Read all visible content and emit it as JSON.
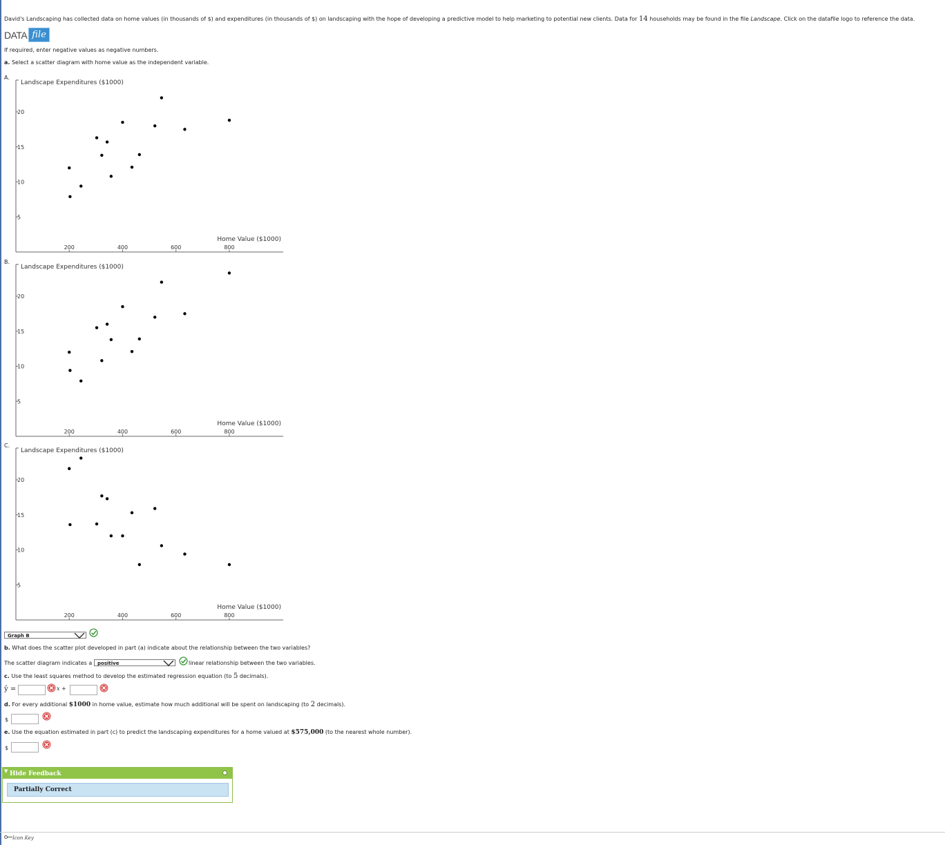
{
  "intro": {
    "pre": "David's Landscaping has collected data on home values (in thousands of $) and expenditures (in thousands of $) on landscaping with the hope of developing a predictive model to help marketing to potential new clients. Data for ",
    "count": "14",
    "mid": " households may be found in the file ",
    "file": "Landscape",
    "post": ". Click on the datafile logo to reference the data."
  },
  "data_logo": {
    "text": "DATA",
    "file": "file"
  },
  "note": "If required, enter negative values as negative numbers.",
  "part_a": {
    "letter": "a.",
    "text": " Select a scatter diagram with home value as the independent variable."
  },
  "options": [
    {
      "letter": "A."
    },
    {
      "letter": "B."
    },
    {
      "letter": "C."
    }
  ],
  "chart_data": [
    {
      "type": "scatter",
      "option": "A",
      "ylabel": "Landscape Expenditures ($1000)",
      "xlabel": "Home Value ($1000)",
      "xticks": [
        200,
        400,
        600,
        800
      ],
      "yticks": [
        5,
        10,
        15,
        20
      ],
      "xlim": [
        0,
        1000
      ],
      "ylim": [
        0,
        25
      ],
      "points": [
        [
          200,
          12.0
        ],
        [
          203,
          7.9
        ],
        [
          244,
          9.4
        ],
        [
          303,
          16.3
        ],
        [
          322,
          13.8
        ],
        [
          342,
          15.7
        ],
        [
          357,
          10.8
        ],
        [
          400,
          18.5
        ],
        [
          435,
          12.1
        ],
        [
          463,
          13.9
        ],
        [
          521,
          18.0
        ],
        [
          546,
          22.0
        ],
        [
          633,
          17.5
        ],
        [
          800,
          18.8
        ]
      ]
    },
    {
      "type": "scatter",
      "option": "B",
      "ylabel": "Landscape Expenditures ($1000)",
      "xlabel": "Home Value ($1000)",
      "xticks": [
        200,
        400,
        600,
        800
      ],
      "yticks": [
        5,
        10,
        15,
        20
      ],
      "xlim": [
        0,
        1000
      ],
      "ylim": [
        0,
        25
      ],
      "points": [
        [
          200,
          12.0
        ],
        [
          203,
          9.4
        ],
        [
          244,
          7.9
        ],
        [
          303,
          15.5
        ],
        [
          322,
          10.8
        ],
        [
          342,
          16.0
        ],
        [
          357,
          13.8
        ],
        [
          400,
          18.5
        ],
        [
          435,
          12.1
        ],
        [
          463,
          13.9
        ],
        [
          521,
          17.0
        ],
        [
          546,
          22.0
        ],
        [
          633,
          17.5
        ],
        [
          800,
          23.3
        ]
      ]
    },
    {
      "type": "scatter",
      "option": "C",
      "ylabel": "Landscape Expenditures ($1000)",
      "xlabel": "Home Value ($1000)",
      "xticks": [
        200,
        400,
        600,
        800
      ],
      "yticks": [
        5,
        10,
        15,
        20
      ],
      "xlim": [
        0,
        1000
      ],
      "ylim": [
        0,
        25
      ],
      "points": [
        [
          200,
          21.6
        ],
        [
          203,
          13.6
        ],
        [
          244,
          23.1
        ],
        [
          303,
          13.7
        ],
        [
          322,
          17.7
        ],
        [
          342,
          17.3
        ],
        [
          357,
          12.0
        ],
        [
          400,
          12.0
        ],
        [
          435,
          15.3
        ],
        [
          463,
          7.9
        ],
        [
          521,
          15.9
        ],
        [
          546,
          10.6
        ],
        [
          633,
          9.4
        ],
        [
          800,
          7.9
        ]
      ]
    }
  ],
  "answer_a": {
    "value": "Graph B"
  },
  "part_b": {
    "letter": "b.",
    "text": " What does the scatter plot developed in part (a) indicate about the relationship between the two variables?"
  },
  "answer_b": {
    "pre": "The scatter diagram indicates a ",
    "value": "positive",
    "post": " linear relationship between the two variables."
  },
  "part_c": {
    "letter": "c.",
    "text1": " Use the least squares method to develop the estimated regression equation (to ",
    "num": "5",
    "text2": " decimals)."
  },
  "equation": {
    "yhat": "ŷ =",
    "x": "x +"
  },
  "part_d": {
    "letter": "d.",
    "text1": " For every additional ",
    "amount": "$1000",
    "text2": " in home value, estimate how much additional will be spent on landscaping (to ",
    "num": "2",
    "text3": " decimals)."
  },
  "part_e": {
    "letter": "e.",
    "text1": " Use the equation estimated in part (c) to predict the landscaping expenditures for a home valued at ",
    "amount": "$575,000",
    "text2": " (to the nearest whole number)."
  },
  "currency": "$",
  "feedback": {
    "toggle": "Hide Feedback",
    "status": "Partially Correct"
  },
  "icon_key": "Icon Key",
  "colors": {
    "green": "#8fc449",
    "blue_logo": "#3a8fd0",
    "status_bg": "#c9e3f3"
  }
}
